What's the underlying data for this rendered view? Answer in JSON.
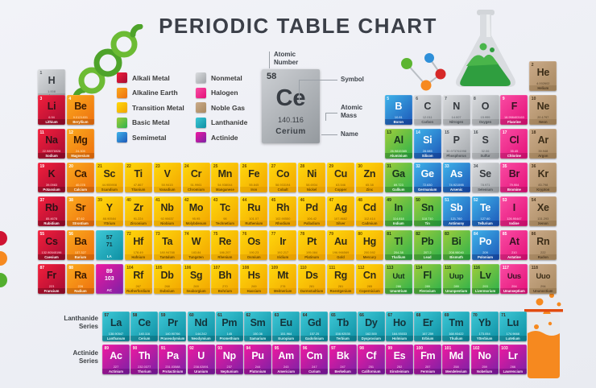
{
  "title": "PERIODIC TABLE CHART",
  "legend": {
    "items": [
      {
        "label": "Alkali Metal",
        "cat": "alkali"
      },
      {
        "label": "Alkaline Earth",
        "cat": "alkaline"
      },
      {
        "label": "Transition Metal",
        "cat": "transition"
      },
      {
        "label": "Basic Metal",
        "cat": "basic"
      },
      {
        "label": "Semimetal",
        "cat": "semimetal"
      },
      {
        "label": "Nonmetal",
        "cat": "nonmetal"
      },
      {
        "label": "Halogen",
        "cat": "halogen"
      },
      {
        "label": "Noble Gas",
        "cat": "noble"
      },
      {
        "label": "Lanthanide",
        "cat": "lanthanide"
      },
      {
        "label": "Actinide",
        "cat": "actinide"
      }
    ]
  },
  "example": {
    "number": "58",
    "symbol": "Ce",
    "mass": "140.116",
    "name": "Cerium",
    "labels": {
      "atomic_number": "Atomic\nNumber",
      "symbol": "Symbol",
      "atomic_mass": "Atomic\nMass",
      "name": "Name"
    }
  },
  "series_labels": {
    "lanthanide": "Lanthanide\nSeries",
    "actinide": "Actinide\nSeries"
  },
  "colors": {
    "background": "#eef0f5",
    "title_text": "#3b3f48",
    "card_gray_from": "#cdd0d4",
    "card_gray_to": "#94999e",
    "categories": {
      "alkali": [
        "#f3203c",
        "#a50a32"
      ],
      "alkaline": [
        "#fbaa1d",
        "#ee6f0e"
      ],
      "transition": [
        "#ffd90c",
        "#f2a400"
      ],
      "basic": [
        "#9fcd3b",
        "#2db14b"
      ],
      "semimetal": [
        "#3fb4ea",
        "#1d57b8"
      ],
      "nonmetal": [
        "#dadcdf",
        "#a2a6aa"
      ],
      "halogen": [
        "#fa4da3",
        "#e31079"
      ],
      "noble": [
        "#cbab89",
        "#a78860"
      ],
      "lanthanide": [
        "#3ec8d6",
        "#0d8fa3"
      ],
      "actinide": [
        "#ef19a0",
        "#7c21a6"
      ]
    }
  },
  "placeholders": [
    {
      "range": "57\n71",
      "sub": "LA",
      "cat": "lanthanide",
      "row": 6,
      "col": 3
    },
    {
      "range": "89\n103",
      "sub": "AC",
      "cat": "actinide",
      "row": 7,
      "col": 3
    }
  ],
  "elements": [
    [
      1,
      "H",
      "1.008",
      "Hydrogen",
      "nonmetal",
      1,
      1
    ],
    [
      2,
      "He",
      "4.002602",
      "Helium",
      "noble",
      1,
      18
    ],
    [
      3,
      "Li",
      "6.94",
      "Lithium",
      "alkali",
      2,
      1
    ],
    [
      4,
      "Be",
      "9.0121831",
      "Beryllium",
      "alkaline",
      2,
      2
    ],
    [
      5,
      "B",
      "10.81",
      "Boron",
      "semimetal",
      2,
      13
    ],
    [
      6,
      "C",
      "12.011",
      "Carbon",
      "nonmetal",
      2,
      14
    ],
    [
      7,
      "N",
      "14.007",
      "Nitrogen",
      "nonmetal",
      2,
      15
    ],
    [
      8,
      "O",
      "15.999",
      "Oxygen",
      "nonmetal",
      2,
      16
    ],
    [
      9,
      "F",
      "18.998403163",
      "Fluorine",
      "halogen",
      2,
      17
    ],
    [
      10,
      "Ne",
      "20.1797",
      "Neon",
      "noble",
      2,
      18
    ],
    [
      11,
      "Na",
      "22.98976928",
      "Sodium",
      "alkali",
      3,
      1
    ],
    [
      12,
      "Mg",
      "24.305",
      "Magnesium",
      "alkaline",
      3,
      2
    ],
    [
      13,
      "Al",
      "26.9815385",
      "Aluminium",
      "basic",
      3,
      13
    ],
    [
      14,
      "Si",
      "28.085",
      "Silicon",
      "semimetal",
      3,
      14
    ],
    [
      15,
      "P",
      "30.973761998",
      "Phosphorus",
      "nonmetal",
      3,
      15
    ],
    [
      16,
      "S",
      "32.06",
      "Sulfur",
      "nonmetal",
      3,
      16
    ],
    [
      17,
      "Cl",
      "35.45",
      "Chlorine",
      "halogen",
      3,
      17
    ],
    [
      18,
      "Ar",
      "39.948",
      "Argon",
      "noble",
      3,
      18
    ],
    [
      19,
      "K",
      "39.0983",
      "Potassium",
      "alkali",
      4,
      1
    ],
    [
      20,
      "Ca",
      "40.078",
      "Calcium",
      "alkaline",
      4,
      2
    ],
    [
      21,
      "Sc",
      "44.955908",
      "Scandium",
      "transition",
      4,
      3
    ],
    [
      22,
      "Ti",
      "47.867",
      "Titanium",
      "transition",
      4,
      4
    ],
    [
      23,
      "V",
      "50.9415",
      "Vanadium",
      "transition",
      4,
      5
    ],
    [
      24,
      "Cr",
      "51.9961",
      "Chromium",
      "transition",
      4,
      6
    ],
    [
      25,
      "Mn",
      "54.938044",
      "Manganese",
      "transition",
      4,
      7
    ],
    [
      26,
      "Fe",
      "55.845",
      "Iron",
      "transition",
      4,
      8
    ],
    [
      27,
      "Co",
      "58.933194",
      "Cobalt",
      "transition",
      4,
      9
    ],
    [
      28,
      "Ni",
      "58.6934",
      "Nickel",
      "transition",
      4,
      10
    ],
    [
      29,
      "Cu",
      "63.546",
      "Copper",
      "transition",
      4,
      11
    ],
    [
      30,
      "Zn",
      "65.38",
      "Zinc",
      "transition",
      4,
      12
    ],
    [
      31,
      "Ga",
      "69.723",
      "Gallium",
      "basic",
      4,
      13
    ],
    [
      32,
      "Ge",
      "72.630",
      "Germanium",
      "semimetal",
      4,
      14
    ],
    [
      33,
      "As",
      "74.921595",
      "Arsenic",
      "semimetal",
      4,
      15
    ],
    [
      34,
      "Se",
      "78.971",
      "Selenium",
      "nonmetal",
      4,
      16
    ],
    [
      35,
      "Br",
      "79.904",
      "Bromine",
      "halogen",
      4,
      17
    ],
    [
      36,
      "Kr",
      "83.798",
      "Krypton",
      "noble",
      4,
      18
    ],
    [
      37,
      "Rb",
      "85.4678",
      "Rubidium",
      "alkali",
      5,
      1
    ],
    [
      38,
      "Sr",
      "87.62",
      "Strontium",
      "alkaline",
      5,
      2
    ],
    [
      39,
      "Y",
      "88.90584",
      "Yttrium",
      "transition",
      5,
      3
    ],
    [
      40,
      "Zr",
      "91.224",
      "Zirconium",
      "transition",
      5,
      4
    ],
    [
      41,
      "Nb",
      "92.90637",
      "Niobium",
      "transition",
      5,
      5
    ],
    [
      42,
      "Mo",
      "95.95",
      "Molybdenum",
      "transition",
      5,
      6
    ],
    [
      43,
      "Tc",
      "98",
      "Technetium",
      "transition",
      5,
      7
    ],
    [
      44,
      "Ru",
      "101.07",
      "Ruthenium",
      "transition",
      5,
      8
    ],
    [
      45,
      "Rh",
      "102.90550",
      "Rhodium",
      "transition",
      5,
      9
    ],
    [
      46,
      "Pd",
      "106.42",
      "Palladium",
      "transition",
      5,
      10
    ],
    [
      47,
      "Ag",
      "107.8682",
      "Silver",
      "transition",
      5,
      11
    ],
    [
      48,
      "Cd",
      "112.414",
      "Cadmium",
      "transition",
      5,
      12
    ],
    [
      49,
      "In",
      "114.818",
      "Indium",
      "basic",
      5,
      13
    ],
    [
      50,
      "Sn",
      "118.710",
      "Tin",
      "basic",
      5,
      14
    ],
    [
      51,
      "Sb",
      "121.760",
      "Antimony",
      "semimetal",
      5,
      15
    ],
    [
      52,
      "Te",
      "127.60",
      "Tellurium",
      "semimetal",
      5,
      16
    ],
    [
      53,
      "I",
      "126.90447",
      "Iodine",
      "halogen",
      5,
      17
    ],
    [
      54,
      "Xe",
      "131.293",
      "Xenon",
      "noble",
      5,
      18
    ],
    [
      55,
      "Cs",
      "132.90545196",
      "Caesium",
      "alkali",
      6,
      1
    ],
    [
      56,
      "Ba",
      "137.327",
      "Barium",
      "alkaline",
      6,
      2
    ],
    [
      72,
      "Hf",
      "178.49",
      "Hafnium",
      "transition",
      6,
      4
    ],
    [
      73,
      "Ta",
      "180.94788",
      "Tantalum",
      "transition",
      6,
      5
    ],
    [
      74,
      "W",
      "183.84",
      "Tungsten",
      "transition",
      6,
      6
    ],
    [
      75,
      "Re",
      "186.207",
      "Rhenium",
      "transition",
      6,
      7
    ],
    [
      76,
      "Os",
      "190.23",
      "Osmium",
      "transition",
      6,
      8
    ],
    [
      77,
      "Ir",
      "192.217",
      "Iridium",
      "transition",
      6,
      9
    ],
    [
      78,
      "Pt",
      "195.084",
      "Platinum",
      "transition",
      6,
      10
    ],
    [
      79,
      "Au",
      "196.966569",
      "Gold",
      "transition",
      6,
      11
    ],
    [
      80,
      "Hg",
      "200.592",
      "Mercury",
      "transition",
      6,
      12
    ],
    [
      81,
      "Tl",
      "204.38",
      "Thallium",
      "basic",
      6,
      13
    ],
    [
      82,
      "Pb",
      "207.2",
      "Lead",
      "basic",
      6,
      14
    ],
    [
      83,
      "Bi",
      "208.98040",
      "Bismuth",
      "basic",
      6,
      15
    ],
    [
      84,
      "Po",
      "209",
      "Polonium",
      "semimetal",
      6,
      16
    ],
    [
      85,
      "At",
      "210",
      "Astatine",
      "halogen",
      6,
      17
    ],
    [
      86,
      "Rn",
      "222",
      "Radon",
      "noble",
      6,
      18
    ],
    [
      87,
      "Fr",
      "223",
      "Francium",
      "alkali",
      7,
      1
    ],
    [
      88,
      "Ra",
      "226",
      "Radium",
      "alkaline",
      7,
      2
    ],
    [
      104,
      "Rf",
      "267",
      "Rutherfordium",
      "transition",
      7,
      4
    ],
    [
      105,
      "Db",
      "268",
      "Dubnium",
      "transition",
      7,
      5
    ],
    [
      106,
      "Sg",
      "269",
      "Seaborgium",
      "transition",
      7,
      6
    ],
    [
      107,
      "Bh",
      "270",
      "Bohrium",
      "transition",
      7,
      7
    ],
    [
      108,
      "Hs",
      "269",
      "Hassium",
      "transition",
      7,
      8
    ],
    [
      109,
      "Mt",
      "278",
      "Meitnerium",
      "transition",
      7,
      9
    ],
    [
      110,
      "Ds",
      "281",
      "Darmstadtium",
      "transition",
      7,
      10
    ],
    [
      111,
      "Rg",
      "281",
      "Roentgenium",
      "transition",
      7,
      11
    ],
    [
      112,
      "Cn",
      "285",
      "Copernicium",
      "transition",
      7,
      12
    ],
    [
      113,
      "Uut",
      "286",
      "Ununtrium",
      "basic",
      7,
      13
    ],
    [
      114,
      "Fl",
      "289",
      "Flerovium",
      "basic",
      7,
      14
    ],
    [
      115,
      "Uup",
      "289",
      "Ununpentium",
      "basic",
      7,
      15
    ],
    [
      116,
      "Lv",
      "293",
      "Livermorium",
      "basic",
      7,
      16
    ],
    [
      117,
      "Uus",
      "294",
      "Ununseptium",
      "halogen",
      7,
      17
    ],
    [
      118,
      "Uuo",
      "294",
      "Ununoctium",
      "noble",
      7,
      18
    ],
    [
      57,
      "La",
      "138.90547",
      "Lanthanum",
      "lanthanide",
      8,
      3
    ],
    [
      58,
      "Ce",
      "140.116",
      "Cerium",
      "lanthanide",
      8,
      4
    ],
    [
      59,
      "Pr",
      "140.90766",
      "Praseodymium",
      "lanthanide",
      8,
      5
    ],
    [
      60,
      "Nd",
      "144.242",
      "Neodymium",
      "lanthanide",
      8,
      6
    ],
    [
      61,
      "Pm",
      "145",
      "Promethium",
      "lanthanide",
      8,
      7
    ],
    [
      62,
      "Sm",
      "150.36",
      "Samarium",
      "lanthanide",
      8,
      8
    ],
    [
      63,
      "Eu",
      "151.964",
      "Europium",
      "lanthanide",
      8,
      9
    ],
    [
      64,
      "Gd",
      "157.25",
      "Gadolinium",
      "lanthanide",
      8,
      10
    ],
    [
      65,
      "Tb",
      "158.92535",
      "Terbium",
      "lanthanide",
      8,
      11
    ],
    [
      66,
      "Dy",
      "162.500",
      "Dysprosium",
      "lanthanide",
      8,
      12
    ],
    [
      67,
      "Ho",
      "164.93033",
      "Holmium",
      "lanthanide",
      8,
      13
    ],
    [
      68,
      "Er",
      "167.259",
      "Erbium",
      "lanthanide",
      8,
      14
    ],
    [
      69,
      "Tm",
      "168.93422",
      "Thulium",
      "lanthanide",
      8,
      15
    ],
    [
      70,
      "Yb",
      "173.054",
      "Ytterbium",
      "lanthanide",
      8,
      16
    ],
    [
      71,
      "Lu",
      "174.9668",
      "Lutetium",
      "lanthanide",
      8,
      17
    ],
    [
      89,
      "Ac",
      "227",
      "Actinium",
      "actinide",
      9,
      3
    ],
    [
      90,
      "Th",
      "232.0377",
      "Thorium",
      "actinide",
      9,
      4
    ],
    [
      91,
      "Pa",
      "231.03588",
      "Protactinium",
      "actinide",
      9,
      5
    ],
    [
      92,
      "U",
      "238.02891",
      "Uranium",
      "actinide",
      9,
      6
    ],
    [
      93,
      "Np",
      "237",
      "Neptunium",
      "actinide",
      9,
      7
    ],
    [
      94,
      "Pu",
      "244",
      "Plutonium",
      "actinide",
      9,
      8
    ],
    [
      95,
      "Am",
      "243",
      "Americium",
      "actinide",
      9,
      9
    ],
    [
      96,
      "Cm",
      "247",
      "Curium",
      "actinide",
      9,
      10
    ],
    [
      97,
      "Bk",
      "247",
      "Berkelium",
      "actinide",
      9,
      11
    ],
    [
      98,
      "Cf",
      "251",
      "Californium",
      "actinide",
      9,
      12
    ],
    [
      99,
      "Es",
      "252",
      "Einsteinium",
      "actinide",
      9,
      13
    ],
    [
      100,
      "Fm",
      "257",
      "Fermium",
      "actinide",
      9,
      14
    ],
    [
      101,
      "Md",
      "258",
      "Mendelevium",
      "actinide",
      9,
      15
    ],
    [
      102,
      "No",
      "259",
      "Nobelium",
      "actinide",
      9,
      16
    ],
    [
      103,
      "Lr",
      "266",
      "Lawrencium",
      "actinide",
      9,
      17
    ]
  ]
}
